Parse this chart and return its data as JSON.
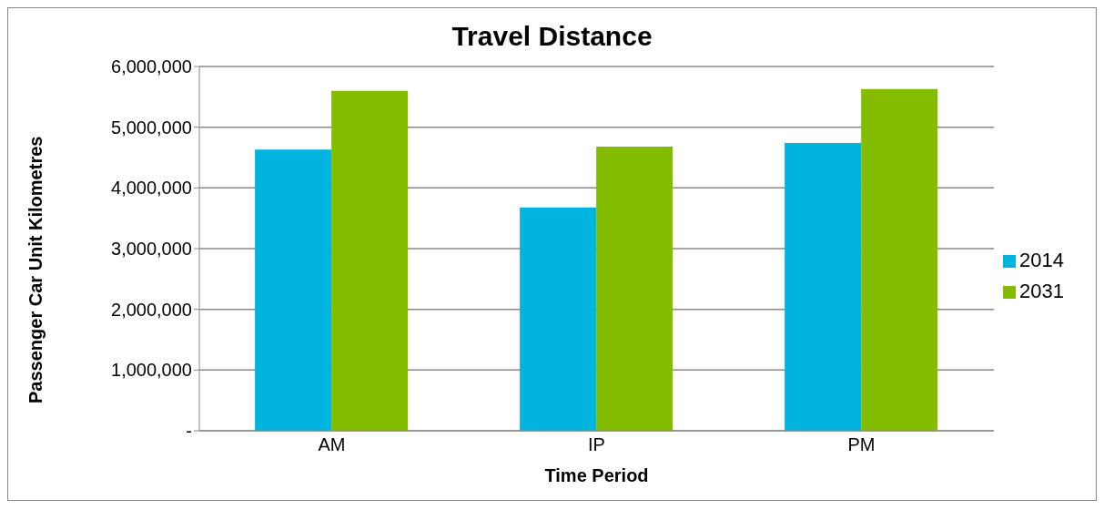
{
  "chart_data": {
    "type": "bar",
    "title": "Travel Distance",
    "xlabel": "Time Period",
    "ylabel": "Passenger Car Unit Kilometres",
    "categories": [
      "AM",
      "IP",
      "PM"
    ],
    "series": [
      {
        "name": "2014",
        "color": "#00b4e0",
        "values": [
          4630000,
          3680000,
          4740000
        ]
      },
      {
        "name": "2031",
        "color": "#84bd00",
        "values": [
          5600000,
          4680000,
          5630000
        ]
      }
    ],
    "ylim": [
      0,
      6000000
    ],
    "yticks": [
      {
        "value": 0,
        "label": "-"
      },
      {
        "value": 1000000,
        "label": "1,000,000"
      },
      {
        "value": 2000000,
        "label": "2,000,000"
      },
      {
        "value": 3000000,
        "label": "3,000,000"
      },
      {
        "value": 4000000,
        "label": "4,000,000"
      },
      {
        "value": 5000000,
        "label": "5,000,000"
      },
      {
        "value": 6000000,
        "label": "6,000,000"
      }
    ],
    "grid": "y",
    "legend": "right"
  }
}
